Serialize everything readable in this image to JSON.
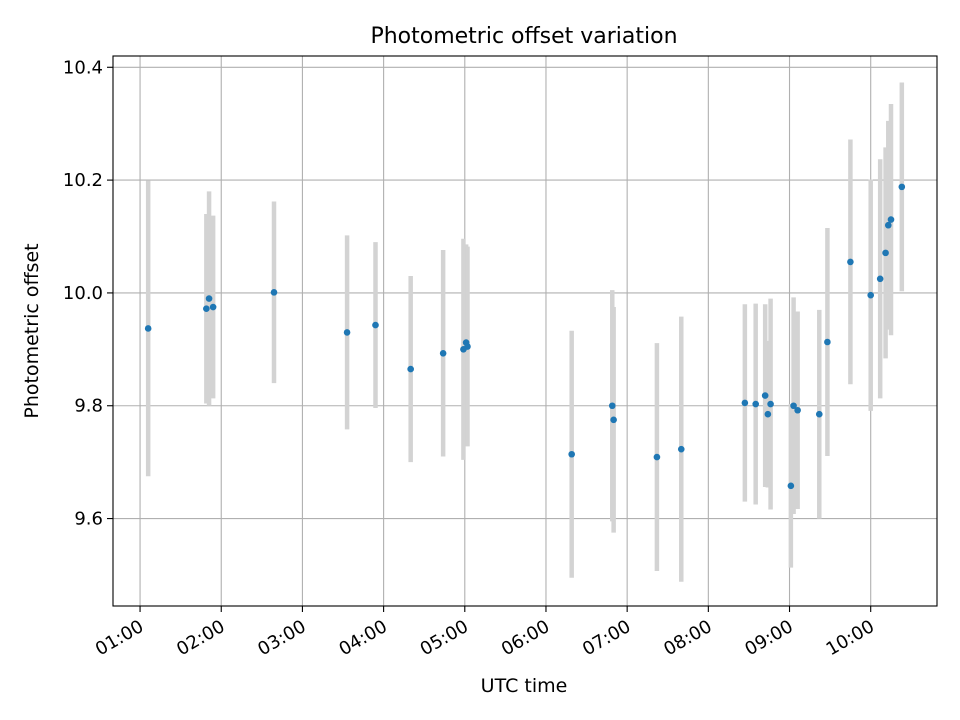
{
  "chart_data": {
    "type": "scatter",
    "title": "Photometric offset variation",
    "xlabel": "UTC time",
    "ylabel": "Photometric offset",
    "x_ticks": [
      "01:00",
      "02:00",
      "03:00",
      "04:00",
      "05:00",
      "06:00",
      "07:00",
      "08:00",
      "09:00",
      "10:00"
    ],
    "y_ticks": [
      "9.6",
      "9.8",
      "10.0",
      "10.2",
      "10.4"
    ],
    "xlim": [
      "00:40",
      "10:49"
    ],
    "ylim": [
      9.445,
      10.42
    ],
    "grid": true,
    "legend": "none",
    "colors": {
      "points": "#1f77b4",
      "errorbars": "#d3d3d3",
      "grid": "#b0b0b0"
    },
    "points": [
      {
        "x": "01:06",
        "y": 9.937,
        "yerr": 0.262
      },
      {
        "x": "01:49",
        "y": 9.972,
        "yerr": 0.168
      },
      {
        "x": "01:51",
        "y": 9.99,
        "yerr": 0.19
      },
      {
        "x": "01:54",
        "y": 9.975,
        "yerr": 0.162
      },
      {
        "x": "02:39",
        "y": 10.001,
        "yerr": 0.161
      },
      {
        "x": "03:33",
        "y": 9.93,
        "yerr": 0.172
      },
      {
        "x": "03:54",
        "y": 9.943,
        "yerr": 0.147
      },
      {
        "x": "04:20",
        "y": 9.865,
        "yerr": 0.165
      },
      {
        "x": "04:44",
        "y": 9.893,
        "yerr": 0.183
      },
      {
        "x": "04:59",
        "y": 9.9,
        "yerr": 0.196
      },
      {
        "x": "05:01",
        "y": 9.912,
        "yerr": 0.174
      },
      {
        "x": "05:02",
        "y": 9.905,
        "yerr": 0.177
      },
      {
        "x": "06:19",
        "y": 9.714,
        "yerr": 0.219
      },
      {
        "x": "06:49",
        "y": 9.8,
        "yerr": 0.205
      },
      {
        "x": "06:50",
        "y": 9.775,
        "yerr": 0.2
      },
      {
        "x": "07:22",
        "y": 9.709,
        "yerr": 0.202
      },
      {
        "x": "07:40",
        "y": 9.723,
        "yerr": 0.235
      },
      {
        "x": "08:27",
        "y": 9.805,
        "yerr": 0.175
      },
      {
        "x": "08:35",
        "y": 9.803,
        "yerr": 0.178
      },
      {
        "x": "08:42",
        "y": 9.818,
        "yerr": 0.162
      },
      {
        "x": "08:44",
        "y": 9.785,
        "yerr": 0.13
      },
      {
        "x": "08:46",
        "y": 9.803,
        "yerr": 0.187
      },
      {
        "x": "09:01",
        "y": 9.658,
        "yerr": 0.145
      },
      {
        "x": "09:03",
        "y": 9.8,
        "yerr": 0.192
      },
      {
        "x": "09:06",
        "y": 9.792,
        "yerr": 0.175
      },
      {
        "x": "09:22",
        "y": 9.785,
        "yerr": 0.185
      },
      {
        "x": "09:28",
        "y": 9.913,
        "yerr": 0.202
      },
      {
        "x": "09:45",
        "y": 10.055,
        "yerr": 0.217
      },
      {
        "x": "10:00",
        "y": 9.996,
        "yerr": 0.205
      },
      {
        "x": "10:07",
        "y": 10.025,
        "yerr": 0.212
      },
      {
        "x": "10:11",
        "y": 10.071,
        "yerr": 0.187
      },
      {
        "x": "10:13",
        "y": 10.12,
        "yerr": 0.185
      },
      {
        "x": "10:15",
        "y": 10.13,
        "yerr": 0.205
      },
      {
        "x": "10:23",
        "y": 10.188,
        "yerr": 0.185
      }
    ]
  }
}
